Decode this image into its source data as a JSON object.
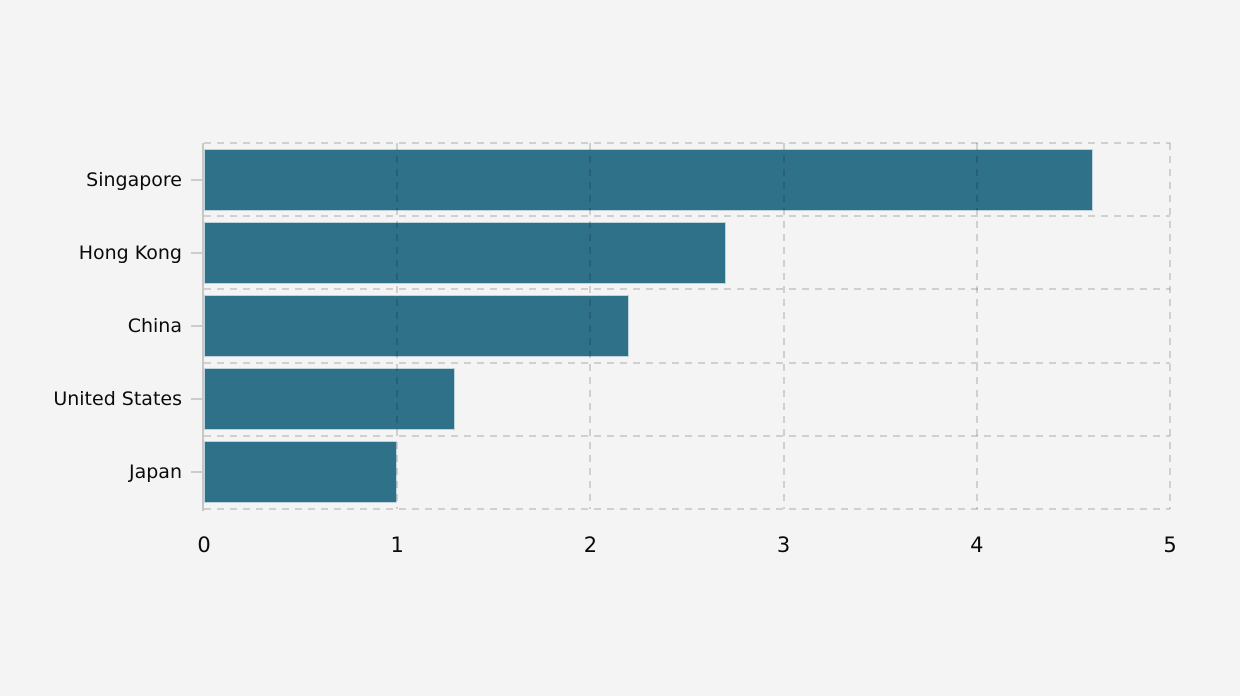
{
  "chart_data": {
    "type": "bar",
    "orientation": "horizontal",
    "title": "",
    "xlabel": "",
    "ylabel": "",
    "categories": [
      "Singapore",
      "Hong Kong",
      "China",
      "United States",
      "Japan"
    ],
    "values": [
      4.6,
      2.7,
      2.2,
      1.3,
      1.0
    ],
    "xlim": [
      0,
      5
    ],
    "x_ticks": [
      "0",
      "1",
      "2",
      "3",
      "4",
      "5"
    ],
    "grid": "dashed",
    "legend_position": "none",
    "colors": {
      "bar_fill": "#2f7189",
      "bar_outline": "#bfd3dc",
      "background": "#f4f4f4",
      "gridline": "rgba(0,0,0,0.15)",
      "axis_line": "#c7c7c7",
      "tick_mark": "#cccccc",
      "text": "#0a0a0a"
    }
  }
}
